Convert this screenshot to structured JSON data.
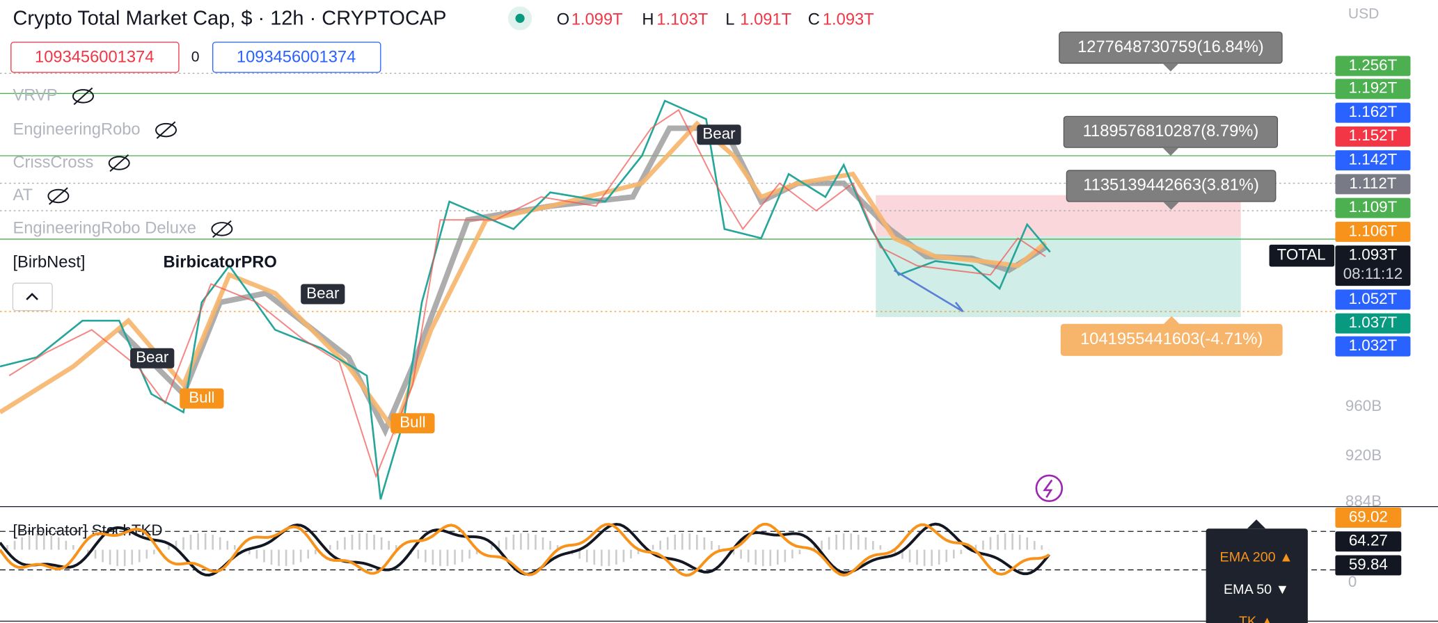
{
  "header": {
    "title": "Crypto Total Market Cap, $ · 12h · CRYPTOCAP",
    "ohlc": [
      {
        "key": "O",
        "value": "1.099T"
      },
      {
        "key": "H",
        "value": "1.103T"
      },
      {
        "key": "L",
        "value": "1.091T"
      },
      {
        "key": "C",
        "value": "1.093T"
      }
    ],
    "currency": "USD"
  },
  "inputs": [
    "1093456001374",
    "0",
    "1093456001374"
  ],
  "indicators": [
    "VRVP",
    "EngineeringRobo",
    "CrissCross",
    "AT",
    "EngineeringRobo Deluxe",
    "[BirbNest]",
    "BirbicatorPRO"
  ],
  "price_scale": [
    "1.256T",
    "1.192T",
    "1.162T",
    "1.152T",
    "1.142T",
    "1.112T",
    "1.109T",
    "1.106T",
    "1.093T",
    "1.052T",
    "1.037T",
    "1.032T",
    "960B",
    "920B",
    "884B"
  ],
  "countdown": "08:11:12",
  "symbol_tag": "TOTAL",
  "measurements": [
    "1277648730759(16.84%)",
    "1189576810287(8.79%)",
    "1135139442663(3.81%)",
    "1041955441603(-4.71%)"
  ],
  "chart_labels": [
    "Bear",
    "Bear",
    "Bear",
    "Bull",
    "Bull"
  ],
  "oscillator": {
    "title": "[Birbicator] StochTKD",
    "scale": [
      "69.02",
      "64.27",
      "59.84",
      "0"
    ]
  },
  "tooltip": [
    "EMA 200 ▲",
    "EMA 50 ▼",
    "TK ▲"
  ]
}
